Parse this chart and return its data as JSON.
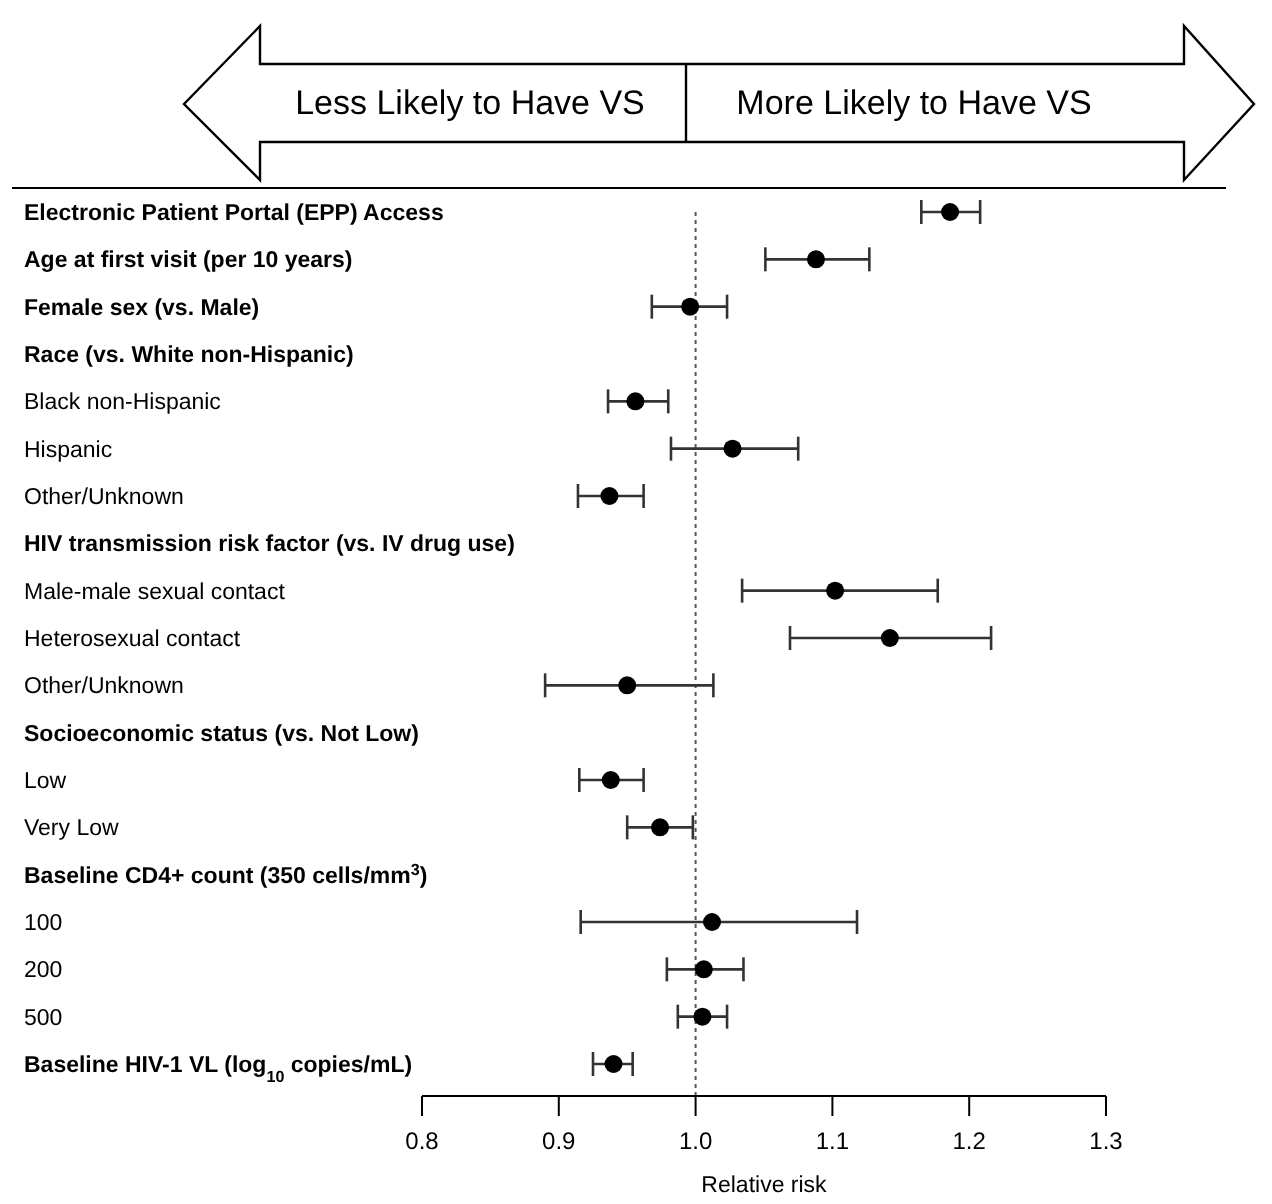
{
  "chart_data": {
    "type": "scatter",
    "orientation": "horizontal",
    "categories": [
      "Electronic Patient Portal (EPP) Access",
      "Age at first visit (per 10 years)",
      "Female sex (vs. Male)",
      "Race (vs. White non-Hispanic)",
      "  Black non-Hispanic",
      "  Hispanic",
      "  Other/Unknown",
      "HIV transmission risk factor (vs. IV drug use)",
      "  Male-male sexual contact",
      "  Heterosexual contact",
      "  Other/Unknown",
      "Socioeconomic status (vs. Not Low)",
      "  Low",
      "  Very Low",
      "Baseline CD4+ count (350 cells/mm$^{3}$)",
      "  100",
      "  200",
      "  500",
      "Baseline HIV-1 VL (log$_{10}$ copies/mL)"
    ],
    "series": [
      {
        "color": "#000000",
        "values": [
          1.186,
          1.088,
          0.996,
          null,
          0.956,
          1.027,
          0.937,
          null,
          1.102,
          1.142,
          0.95,
          null,
          0.938,
          0.974,
          null,
          1.012,
          1.006,
          1.005,
          0.94
        ],
        "errors": [
          [
            1.165,
            1.208
          ],
          [
            1.051,
            1.127
          ],
          [
            0.968,
            1.023
          ],
          null,
          [
            0.936,
            0.98
          ],
          [
            0.982,
            1.075
          ],
          [
            0.914,
            0.962
          ],
          null,
          [
            1.034,
            1.177
          ],
          [
            1.069,
            1.216
          ],
          [
            0.89,
            1.013
          ],
          null,
          [
            0.915,
            0.962
          ],
          [
            0.95,
            0.998
          ],
          null,
          [
            0.916,
            1.118
          ],
          [
            0.979,
            1.035
          ],
          [
            0.987,
            1.023
          ],
          [
            0.925,
            0.954
          ]
        ]
      }
    ],
    "xlim": [
      0.8,
      1.3
    ],
    "xticks": [
      0.8,
      0.9,
      {
        "value": 1.0,
        "label": "1.0"
      },
      1.1,
      1.2,
      1.3
    ],
    "xlabel": "Relative risk",
    "ref_lines": [
      {
        "axis": "x",
        "value": 1.0,
        "line_style": "dotted",
        "color": "#555555"
      }
    ],
    "annotations": [
      "Less Likely to Have VS",
      "More Likely to Have VS"
    ],
    "marker": "circle"
  }
}
